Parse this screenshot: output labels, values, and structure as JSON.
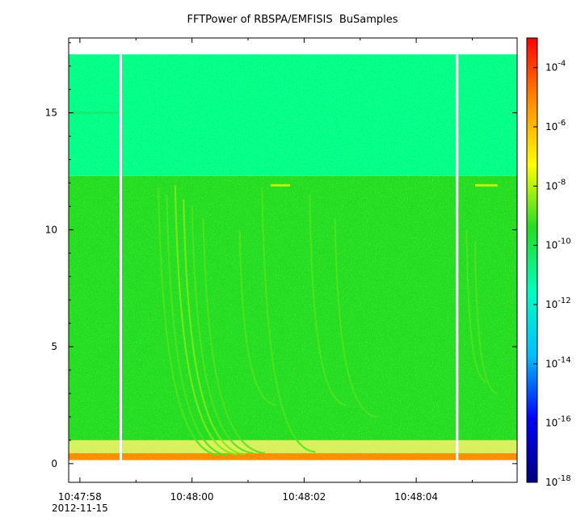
{
  "chart_data": {
    "type": "heatmap",
    "title": "FFTPower of RBSPA/EMFISIS  BuSamples",
    "xlabel": "",
    "ylabel": "",
    "x_tick_labels": [
      "10:47:58",
      "10:48:00",
      "10:48:02",
      "10:48:04"
    ],
    "x_date_label": "2012-11-15",
    "x_range": [
      "10:47:57.8",
      "10:48:05.8"
    ],
    "x_ticks_seconds": [
      0.2,
      2.2,
      4.2,
      6.2
    ],
    "x_minor_ticks_seconds": [
      1.2,
      3.2,
      5.2,
      7.2
    ],
    "y_ticks": [
      0,
      5,
      10,
      15
    ],
    "ylim": [
      -0.8,
      18.2
    ],
    "data_ymax": 17.5,
    "colorbar": {
      "scale": "log",
      "range": [
        1e-18,
        0.001
      ],
      "tick_labels": [
        {
          "base": "10",
          "exp": "-4",
          "value": 0.0001
        },
        {
          "base": "10",
          "exp": "-6",
          "value": 1e-06
        },
        {
          "base": "10",
          "exp": "-8",
          "value": 1e-08
        },
        {
          "base": "10",
          "exp": "-10",
          "value": 1e-10
        },
        {
          "base": "10",
          "exp": "-12",
          "value": 1e-12
        },
        {
          "base": "10",
          "exp": "-14",
          "value": 1e-14
        },
        {
          "base": "10",
          "exp": "-16",
          "value": 1e-16
        },
        {
          "base": "10",
          "exp": "-18",
          "value": 1e-18
        }
      ],
      "colors": [
        "#00007f",
        "#0000ff",
        "#00bfff",
        "#00ffc0",
        "#22dd22",
        "#ffff00",
        "#ff8c00",
        "#ff0000"
      ]
    },
    "data_gaps_seconds": [
      0.93,
      6.93
    ],
    "background_levels": [
      {
        "y_from": 12.3,
        "y_to": 17.5,
        "power": 3e-12,
        "color": "#00ff88"
      },
      {
        "y_from": 1.0,
        "y_to": 12.3,
        "power": 1e-10,
        "color": "#22dd22"
      },
      {
        "y_from": 0.15,
        "y_to": 0.45,
        "power": 1e-07,
        "color": "#ff8c00"
      }
    ],
    "features": [
      {
        "x_start": 1.6,
        "y_start": 11.8,
        "x_end": 2.7,
        "y_end": 0.35,
        "power": 1e-09
      },
      {
        "x_start": 1.75,
        "y_start": 11.5,
        "x_end": 2.85,
        "y_end": 0.35,
        "power": 1e-09
      },
      {
        "x_start": 1.9,
        "y_start": 11.9,
        "x_end": 3.0,
        "y_end": 0.4,
        "power": 3e-09
      },
      {
        "x_start": 2.05,
        "y_start": 11.3,
        "x_end": 3.15,
        "y_end": 0.4,
        "power": 3e-09
      },
      {
        "x_start": 2.2,
        "y_start": 11.0,
        "x_end": 3.3,
        "y_end": 0.45,
        "power": 1e-09
      },
      {
        "x_start": 2.4,
        "y_start": 10.5,
        "x_end": 3.5,
        "y_end": 0.45,
        "power": 1e-09
      },
      {
        "x_start": 3.05,
        "y_start": 10.0,
        "x_end": 3.7,
        "y_end": 2.5,
        "power": 1e-09
      },
      {
        "x_start": 3.45,
        "y_start": 11.8,
        "x_end": 4.4,
        "y_end": 0.5,
        "power": 1e-09
      },
      {
        "x_start": 4.3,
        "y_start": 11.5,
        "x_end": 4.95,
        "y_end": 2.5,
        "power": 1e-09
      },
      {
        "x_start": 4.75,
        "y_start": 10.5,
        "x_end": 5.5,
        "y_end": 2.0,
        "power": 1e-09
      },
      {
        "x_start": 7.1,
        "y_start": 10.0,
        "x_end": 7.45,
        "y_end": 3.5,
        "power": 1e-09
      },
      {
        "x_start": 7.25,
        "y_start": 9.5,
        "x_end": 7.65,
        "y_end": 3.0,
        "power": 1e-09
      }
    ],
    "tones": [
      {
        "x_from": 3.6,
        "x_to": 3.95,
        "y": 11.9,
        "power": 1e-08
      },
      {
        "x_from": 7.25,
        "x_to": 7.65,
        "y": 11.9,
        "power": 1e-08
      },
      {
        "x_from": 0.0,
        "x_to": 0.93,
        "y": 15.0,
        "power": 3e-11
      }
    ]
  }
}
